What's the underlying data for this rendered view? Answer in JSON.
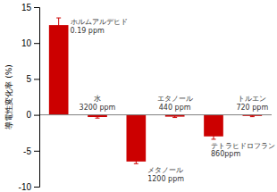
{
  "chart_data": {
    "type": "bar",
    "ylabel": "導電性変化率 (%)",
    "categories": [
      null,
      null,
      null,
      null,
      null,
      null
    ],
    "values": [
      12.5,
      -0.3,
      -6.5,
      -0.25,
      -3.0,
      -0.15
    ],
    "errors": [
      1.0,
      0.15,
      0.3,
      0.12,
      0.4,
      0.1
    ],
    "color": "#cc0000",
    "ylim": [
      -10,
      15
    ],
    "yticks": [
      -10,
      -5,
      0,
      5,
      10,
      15
    ],
    "grid": false,
    "tick_labels": "y",
    "annotations": [
      [
        "ホルムアルデヒド",
        "0.19 ppm"
      ],
      [
        "水",
        "3200 ppm"
      ],
      [
        "メタノール",
        "1200 ppm"
      ],
      [
        "エタノール",
        "440 ppm"
      ],
      [
        "テトラヒドロフラン",
        "860ppm"
      ],
      [
        "トルエン",
        "720 ppm"
      ]
    ]
  }
}
